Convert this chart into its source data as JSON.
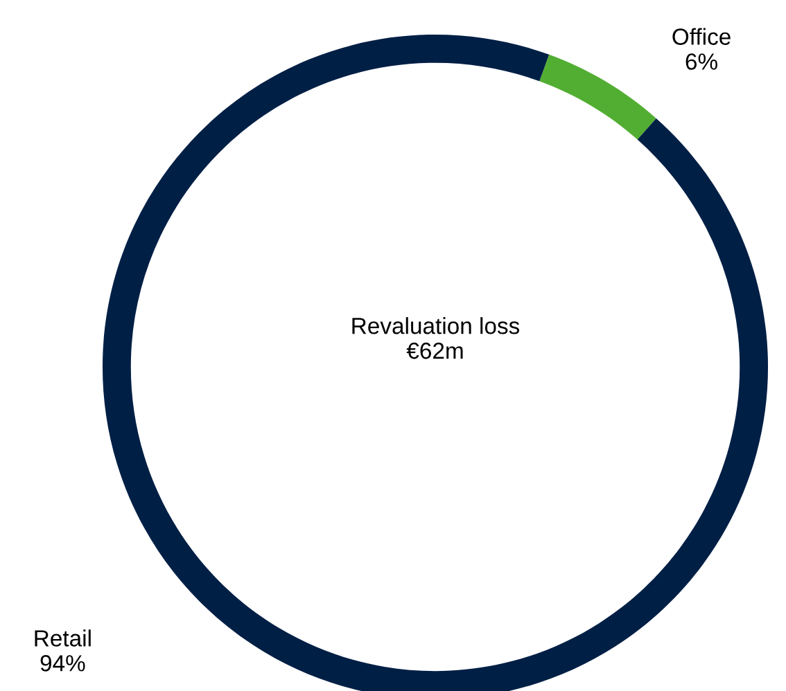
{
  "chart_data": {
    "type": "donut",
    "categories": [
      "Office",
      "Retail"
    ],
    "values": [
      6,
      94
    ],
    "colors": [
      "#52ae32",
      "#001f45"
    ],
    "annotations": [
      "Revaluation loss\n€62m"
    ],
    "value_labels": [
      "6%",
      "94%"
    ]
  }
}
